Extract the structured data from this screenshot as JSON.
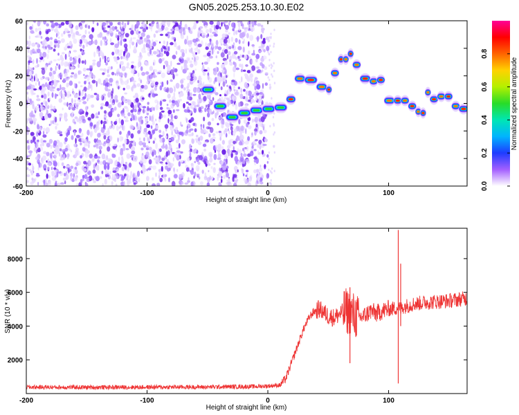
{
  "figure_title": "GN05.2025.253.10.30.E02",
  "chart_data": [
    {
      "type": "heatmap",
      "xlabel": "Height of straight line (km)",
      "ylabel": "Frequency (Hz)",
      "xlim": [
        -200,
        165
      ],
      "ylim": [
        -60,
        60
      ],
      "x_ticks": [
        "-200",
        "-100",
        "0",
        "100"
      ],
      "y_ticks": [
        "-60",
        "-40",
        "-20",
        "0",
        "20",
        "40",
        "60"
      ],
      "grid": false,
      "noise_region_x": [
        -200,
        0
      ],
      "doppler_track": [
        {
          "x": -55,
          "y": 10
        },
        {
          "x": -45,
          "y": -2
        },
        {
          "x": -35,
          "y": -10
        },
        {
          "x": -25,
          "y": -7
        },
        {
          "x": -15,
          "y": -5
        },
        {
          "x": -5,
          "y": -4
        },
        {
          "x": 5,
          "y": -3
        },
        {
          "x": 15,
          "y": 3
        },
        {
          "x": 22,
          "y": 18
        },
        {
          "x": 30,
          "y": 17
        },
        {
          "x": 40,
          "y": 12
        },
        {
          "x": 48,
          "y": 10
        },
        {
          "x": 52,
          "y": 22
        },
        {
          "x": 58,
          "y": 32
        },
        {
          "x": 62,
          "y": 32
        },
        {
          "x": 66,
          "y": 36
        },
        {
          "x": 70,
          "y": 28
        },
        {
          "x": 76,
          "y": 18
        },
        {
          "x": 84,
          "y": 16
        },
        {
          "x": 90,
          "y": 17
        },
        {
          "x": 96,
          "y": 2
        },
        {
          "x": 104,
          "y": 2
        },
        {
          "x": 110,
          "y": 2
        },
        {
          "x": 116,
          "y": -2
        },
        {
          "x": 122,
          "y": -6
        },
        {
          "x": 126,
          "y": -7
        },
        {
          "x": 130,
          "y": 8
        },
        {
          "x": 134,
          "y": 3
        },
        {
          "x": 140,
          "y": 5
        },
        {
          "x": 146,
          "y": 5
        },
        {
          "x": 152,
          "y": -2
        },
        {
          "x": 158,
          "y": -4
        },
        {
          "x": 165,
          "y": -4
        }
      ],
      "colorbar": {
        "label": "Normalized spectral amplitude",
        "range": [
          0,
          1
        ],
        "ticks": [
          "0.0",
          "0.2",
          "0.4",
          "0.6",
          "0.8"
        ],
        "colors": [
          "#ffffff",
          "#a35fff",
          "#1e3cff",
          "#00b4ff",
          "#00e6b4",
          "#28dc28",
          "#b4f000",
          "#ffd200",
          "#ff6400",
          "#ff0000",
          "#ff0096"
        ]
      }
    },
    {
      "type": "line",
      "xlabel": "Height of straight line (km)",
      "ylabel": "SNR (10 * v/v)",
      "xlim": [
        -200,
        165
      ],
      "ylim": [
        0,
        9800
      ],
      "x_ticks": [
        "-200",
        "-100",
        "0",
        "100"
      ],
      "y_ticks": [
        "2000",
        "4000",
        "6000",
        "8000"
      ],
      "grid": false,
      "series": [
        {
          "color": "#ee3333",
          "x": [
            -200,
            -150,
            -100,
            -50,
            -10,
            0,
            10,
            15,
            20,
            25,
            30,
            35,
            38,
            42,
            45,
            50,
            55,
            60,
            65,
            70,
            75,
            80,
            85,
            90,
            95,
            100,
            105,
            108,
            110,
            112,
            115,
            120,
            130,
            140,
            150,
            160,
            165
          ],
          "y": [
            380,
            370,
            380,
            390,
            420,
            450,
            500,
            900,
            1900,
            2900,
            3900,
            4600,
            4850,
            5000,
            4900,
            4600,
            4500,
            4750,
            4900,
            4700,
            4500,
            4600,
            4900,
            4750,
            4900,
            5000,
            5050,
            5100,
            5000,
            5150,
            5200,
            5300,
            5400,
            5450,
            5500,
            5600,
            5650
          ],
          "spikes": [
            {
              "x": 108,
              "y_min": 600,
              "y_max": 9700
            },
            {
              "x": 110,
              "y_min": 4000,
              "y_max": 7700
            },
            {
              "x": 68,
              "y_min": 1800,
              "y_max": 6300
            }
          ]
        }
      ]
    }
  ]
}
